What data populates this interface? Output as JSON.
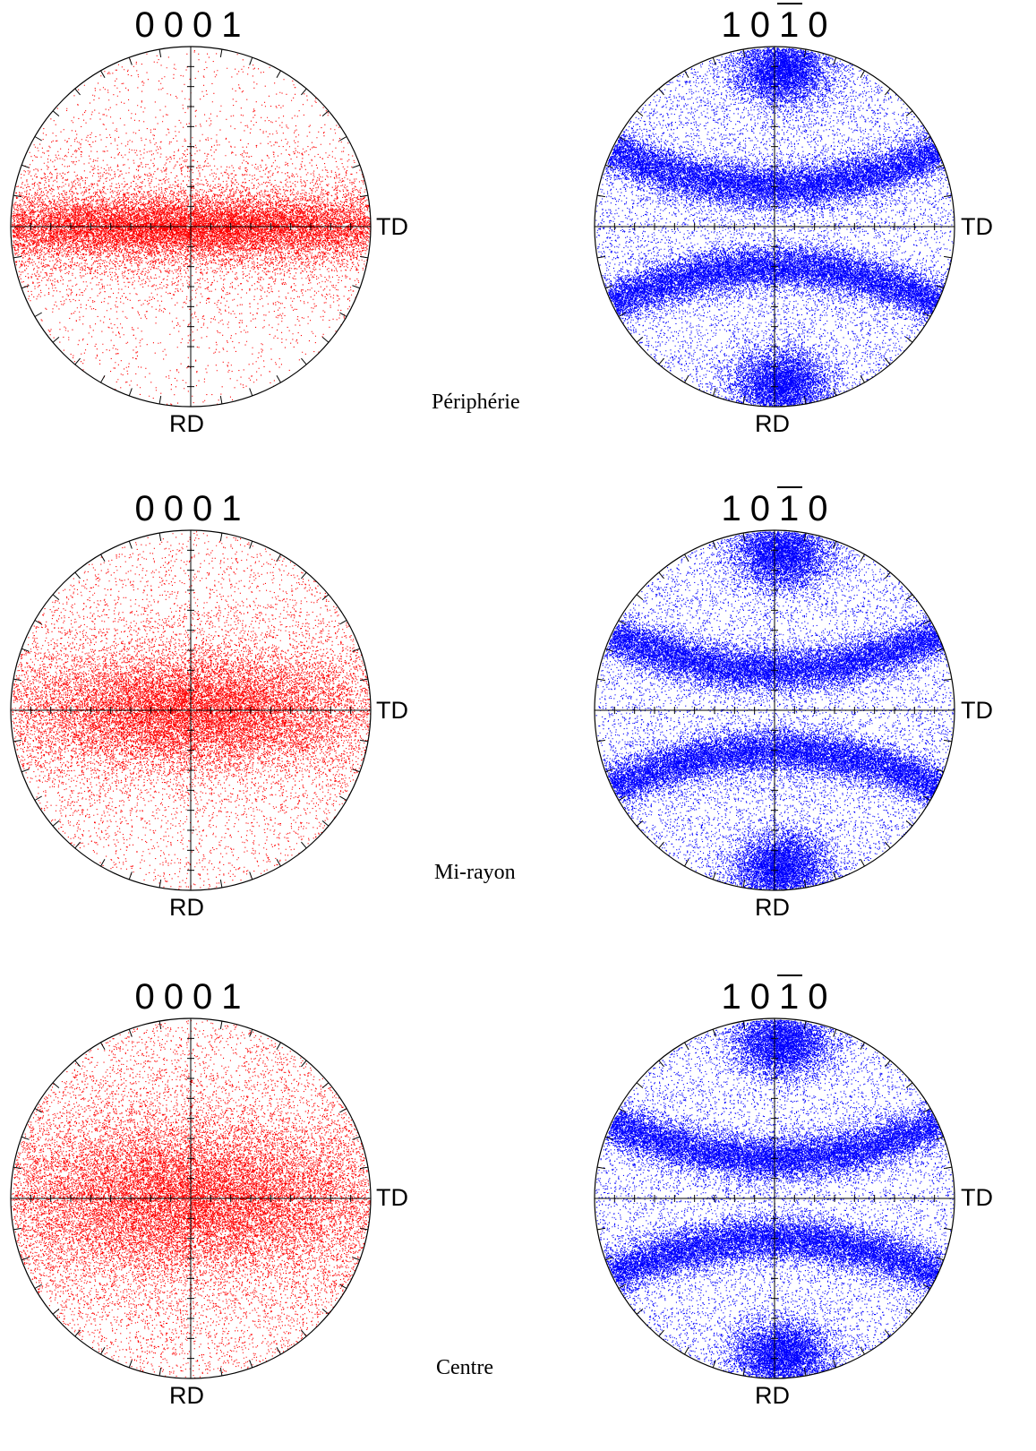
{
  "chart_data": [
    {
      "type": "scatter",
      "title": [
        "0",
        "0",
        "0",
        "1"
      ],
      "xlabel": "TD",
      "ylabel": "RD",
      "color": "#ff0000",
      "region": "Périphérie"
    },
    {
      "type": "scatter",
      "title": [
        "1",
        "0",
        "1",
        "0"
      ],
      "title_overbar_index": 2,
      "xlabel": "TD",
      "ylabel": "RD",
      "color": "#0000ff",
      "region": "Périphérie"
    },
    {
      "type": "scatter",
      "title": [
        "0",
        "0",
        "0",
        "1"
      ],
      "xlabel": "TD",
      "ylabel": "RD",
      "color": "#ff0000",
      "region": "Mi-rayon"
    },
    {
      "type": "scatter",
      "title": [
        "1",
        "0",
        "1",
        "0"
      ],
      "title_overbar_index": 2,
      "xlabel": "TD",
      "ylabel": "RD",
      "color": "#0000ff",
      "region": "Mi-rayon"
    },
    {
      "type": "scatter",
      "title": [
        "0",
        "0",
        "0",
        "1"
      ],
      "xlabel": "TD",
      "ylabel": "RD",
      "color": "#ff0000",
      "region": "Centre"
    },
    {
      "type": "scatter",
      "title": [
        "1",
        "0",
        "1",
        "0"
      ],
      "title_overbar_index": 2,
      "xlabel": "TD",
      "ylabel": "RD",
      "color": "#0000ff",
      "region": "Centre"
    }
  ],
  "rows": [
    {
      "label": "Périphérie"
    },
    {
      "label": "Mi-rayon"
    },
    {
      "label": "Centre"
    }
  ]
}
